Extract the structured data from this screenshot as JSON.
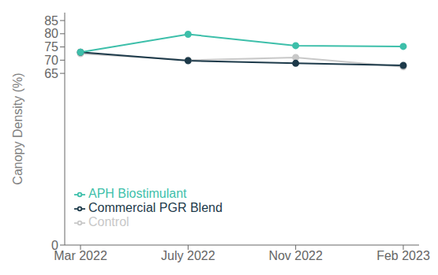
{
  "chart_data": {
    "type": "line",
    "categories": [
      "Mar 2022",
      "July 2022",
      "Nov 2022",
      "Feb 2023"
    ],
    "series": [
      {
        "name": "Control",
        "color": "#c8c8c8",
        "marker": "circle",
        "values": [
          72.5,
          70.0,
          71.0,
          67.5
        ]
      },
      {
        "name": "Commercial PGR Blend",
        "color": "#1d3a4a",
        "marker": "circle",
        "values": [
          73.0,
          69.8,
          68.8,
          68.0
        ]
      },
      {
        "name": "APH Biostimulant",
        "color": "#3dbfaa",
        "marker": "circle",
        "values": [
          73.0,
          79.8,
          75.5,
          75.2
        ]
      }
    ],
    "ylabel": "Canopy Density (%)",
    "ylim": [
      0,
      88
    ],
    "yticks": [
      0,
      65,
      70,
      75,
      80,
      85
    ],
    "grid": false,
    "legend": "lower left"
  }
}
